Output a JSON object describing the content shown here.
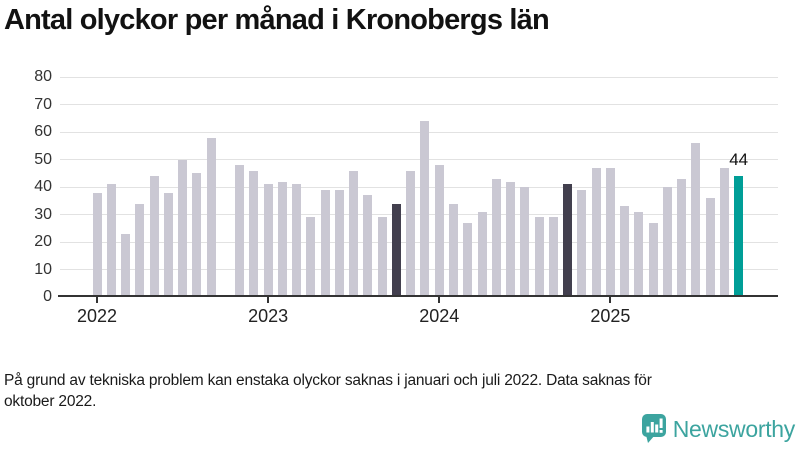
{
  "title": "Antal olyckor per månad i Kronobergs län",
  "footnote": {
    "lines": [
      "På grund av tekniska problem kan enstaka olyckor saknas i januari och juli 2022. Data saknas för",
      "oktober 2022."
    ]
  },
  "branding": {
    "wordmark": "Newsworthy",
    "icon": "newsworthy-barchart-bubble-icon"
  },
  "colors": {
    "bar_normal": "#cac8d3",
    "bar_dark": "#423f4e",
    "bar_accent": "#009e97",
    "gridline": "#e2e2e2",
    "axis": "#333333",
    "brand_teal": "#3ca49f"
  },
  "chart_data": {
    "type": "bar",
    "title": "Antal olyckor per månad i Kronobergs län",
    "xlabel": "",
    "ylabel": "",
    "ylim": [
      0,
      80
    ],
    "y_ticks": [
      0,
      10,
      20,
      30,
      40,
      50,
      60,
      70,
      80
    ],
    "grid": "horizontal",
    "x_ticks": [
      {
        "label": "2022",
        "month_index": 0
      },
      {
        "label": "2023",
        "month_index": 12
      },
      {
        "label": "2024",
        "month_index": 24
      },
      {
        "label": "2025",
        "month_index": 36
      }
    ],
    "missing_months": [
      "2022-10"
    ],
    "highlighted_dark_months": [
      "2023-10",
      "2024-10"
    ],
    "highlighted_accent_month": "2025-10",
    "annotation": {
      "label": "44",
      "month": "2025-10"
    },
    "series": [
      {
        "m": "2022-01",
        "v": 38
      },
      {
        "m": "2022-02",
        "v": 41
      },
      {
        "m": "2022-03",
        "v": 23
      },
      {
        "m": "2022-04",
        "v": 34
      },
      {
        "m": "2022-05",
        "v": 44
      },
      {
        "m": "2022-06",
        "v": 38
      },
      {
        "m": "2022-07",
        "v": 50
      },
      {
        "m": "2022-08",
        "v": 45
      },
      {
        "m": "2022-09",
        "v": 58
      },
      {
        "m": "2022-10",
        "v": null
      },
      {
        "m": "2022-11",
        "v": 48
      },
      {
        "m": "2022-12",
        "v": 46
      },
      {
        "m": "2023-01",
        "v": 41
      },
      {
        "m": "2023-02",
        "v": 42
      },
      {
        "m": "2023-03",
        "v": 41
      },
      {
        "m": "2023-04",
        "v": 29
      },
      {
        "m": "2023-05",
        "v": 39
      },
      {
        "m": "2023-06",
        "v": 39
      },
      {
        "m": "2023-07",
        "v": 46
      },
      {
        "m": "2023-08",
        "v": 37
      },
      {
        "m": "2023-09",
        "v": 29
      },
      {
        "m": "2023-10",
        "v": 34,
        "k": "dark"
      },
      {
        "m": "2023-11",
        "v": 46
      },
      {
        "m": "2023-12",
        "v": 64
      },
      {
        "m": "2024-01",
        "v": 48
      },
      {
        "m": "2024-02",
        "v": 34
      },
      {
        "m": "2024-03",
        "v": 27
      },
      {
        "m": "2024-04",
        "v": 31
      },
      {
        "m": "2024-05",
        "v": 43
      },
      {
        "m": "2024-06",
        "v": 42
      },
      {
        "m": "2024-07",
        "v": 40
      },
      {
        "m": "2024-08",
        "v": 29
      },
      {
        "m": "2024-09",
        "v": 29
      },
      {
        "m": "2024-10",
        "v": 41,
        "k": "dark"
      },
      {
        "m": "2024-11",
        "v": 39
      },
      {
        "m": "2024-12",
        "v": 47
      },
      {
        "m": "2025-01",
        "v": 47
      },
      {
        "m": "2025-02",
        "v": 33
      },
      {
        "m": "2025-03",
        "v": 31
      },
      {
        "m": "2025-04",
        "v": 27
      },
      {
        "m": "2025-05",
        "v": 40
      },
      {
        "m": "2025-06",
        "v": 43
      },
      {
        "m": "2025-07",
        "v": 56
      },
      {
        "m": "2025-08",
        "v": 36
      },
      {
        "m": "2025-09",
        "v": 47
      },
      {
        "m": "2025-10",
        "v": 44,
        "k": "accent"
      }
    ]
  }
}
